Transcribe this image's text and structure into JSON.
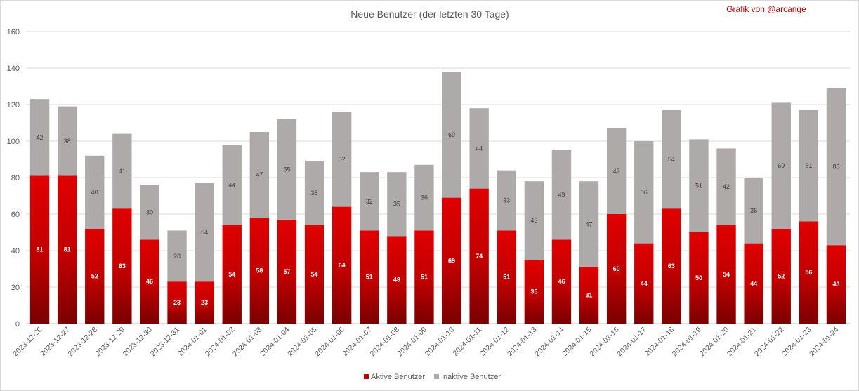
{
  "chart_data": {
    "type": "bar",
    "stacked": true,
    "title": "Neue Benutzer (der letzten 30 Tage)",
    "credit": "Grafik von @arcange",
    "categories": [
      "2023-12-26",
      "2023-12-27",
      "2023-12-28",
      "2023-12-29",
      "2023-12-30",
      "2023-12-31",
      "2024-01-01",
      "2024-01-02",
      "2024-01-03",
      "2024-01-04",
      "2024-01-05",
      "2024-01-06",
      "2024-01-07",
      "2024-01-08",
      "2024-01-09",
      "2024-01-10",
      "2024-01-11",
      "2024-01-12",
      "2024-01-13",
      "2024-01-14",
      "2024-01-15",
      "2024-01-16",
      "2024-01-17",
      "2024-01-18",
      "2024-01-19",
      "2024-01-20",
      "2024-01-21",
      "2024-01-22",
      "2024-01-23",
      "2024-01-24"
    ],
    "series": [
      {
        "name": "Aktive Benutzer",
        "color": "#c00000",
        "values": [
          81,
          81,
          52,
          63,
          46,
          23,
          23,
          54,
          58,
          57,
          54,
          64,
          51,
          48,
          51,
          69,
          74,
          51,
          35,
          46,
          31,
          60,
          44,
          63,
          50,
          54,
          44,
          52,
          56,
          43
        ]
      },
      {
        "name": "Inaktive Benutzer",
        "color": "#aeaaaa",
        "values": [
          42,
          38,
          40,
          41,
          30,
          28,
          54,
          44,
          47,
          55,
          35,
          52,
          32,
          35,
          36,
          69,
          44,
          33,
          43,
          49,
          47,
          47,
          56,
          54,
          51,
          42,
          36,
          69,
          61,
          86
        ]
      }
    ],
    "ylim": [
      0,
      160
    ],
    "yticks": [
      0,
      20,
      40,
      60,
      80,
      100,
      120,
      140,
      160
    ],
    "grid": true,
    "legend": "bottom-center"
  }
}
